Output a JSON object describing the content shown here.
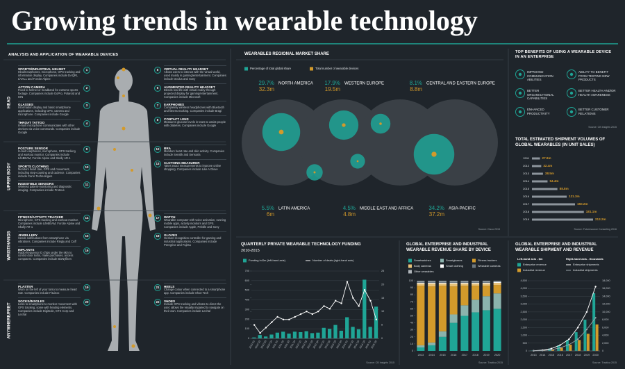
{
  "title": "Growing trends in wearable technology",
  "devices": {
    "heading": "ANALYSIS AND APPLICATION OF WEARABLE DEVICES",
    "regions": [
      {
        "label": "HEAD",
        "left": [
          {
            "number": 1,
            "name": "SPORTS/INDUSTRIAL HELMET",
            "text": "Inbuilt earphones, microphone, GPS tracking and information display. Companies include DAQRI, LiVALL and Forcite Alpine"
          },
          {
            "number": 2,
            "name": "ACTION CAMERA",
            "text": "Fixed to helmet or headband for extreme sports footage. Companies include GoPro, Polaroid and ION"
          },
          {
            "number": 3,
            "name": "GLASSES",
            "text": "Information display and basic smartphone applications, including GPS, camera and microphone. Companies include Google"
          },
          {
            "number": 4,
            "name": "THROAT TATTOO",
            "text": "In-built microphone communicates with other devices via voice commands. Companies include Google"
          }
        ],
        "right": [
          {
            "number": 5,
            "name": "VIRTUAL REALITY HEADSET",
            "text": "Allows users to interact with the virtual world, used mainly in gaming/entertainment. Companies include Oculus and Sony"
          },
          {
            "number": 6,
            "name": "AUGMENTED REALITY HEADSET",
            "text": "Blends real life with virtual reality through projected display for gaming/entertainment. Companies include Microsoft"
          },
          {
            "number": 7,
            "name": "EARPHONES",
            "text": "Completely wireless headphones with Bluetooth and fitness tracking. Companies include Bragi"
          },
          {
            "number": 8,
            "name": "CONTACT LENS",
            "text": "Measures glucose levels in tears to assist people with diabetes. Companies include Google"
          }
        ]
      },
      {
        "label": "UPPER BODY",
        "left": [
          {
            "number": 9,
            "name": "POSTURE SENSOR",
            "text": "In-built earphones, microphone, GPS tracking and workout monitor. Companies include LifeBEAM, Forcite Alpine and Skully AR-1"
          },
          {
            "number": 10,
            "name": "SPORTS CLOTHING",
            "text": "Monitors heart rate, GPS and movement, including step-counting and cadence. Companies include Carre Technologies"
          },
          {
            "number": 11,
            "name": "INGESTIBLE SENSORS",
            "text": "Wireless patient-monitoring and diagnostic imaging. Companies include Proteus"
          }
        ],
        "right": [
          {
            "number": 12,
            "name": "BRA",
            "text": "Monitors heart rate and skin activity. Companies include Sensilk and Sensoria"
          },
          {
            "number": 13,
            "name": "CLOTHING MEASURER",
            "text": "Takes exact measurements to improve online shopping. Companies include Like A Glove"
          }
        ]
      },
      {
        "label": "WRIST/HANDS",
        "left": [
          {
            "number": 14,
            "name": "FITNESS/ACTIVITY TRACKER",
            "text": "Microphone, GPS tracking and workout monitor. Companies include LifeBEAM, Forcite Alpine and Skully AR-1"
          },
          {
            "number": 15,
            "name": "JEWELLERY",
            "text": "Sends notifications from smartphone via vibrations. Companies include Ringly and Cuff"
          },
          {
            "number": 16,
            "name": "IMPLANTS",
            "text": "Radio-frequency ID chips under the skin to control door locks, make purchases, access computers. Companies include BioNyfiken"
          }
        ],
        "right": [
          {
            "number": 17,
            "name": "WATCH",
            "text": "Wearable computer with voice activation, running mobile apps, activity monitors and GPS. Companies include Apple, Pebble and Sony"
          },
          {
            "number": 18,
            "name": "GLOVES",
            "text": "Gesture-recognition controller for gaming and industrial applications. Companies include Peregrine and Fujitsu"
          }
        ]
      },
      {
        "label": "ANYWHERE/FEET",
        "left": [
          {
            "number": 19,
            "name": "PLASTER",
            "text": "Worn on the left of your torso to measure heart rate. Companies include FitLinxx"
          },
          {
            "number": 20,
            "name": "SOCKS/INSOLES",
            "text": "Links to smartphone to monitor movement with GPS tracking, some with heating elements. Companies include Digitsole, GTX Corp and Lechal"
          }
        ],
        "right": [
          {
            "number": 21,
            "name": "HEELS",
            "text": "Change colour when connected to a smartphone app. Companies include Shoe Tech"
          },
          {
            "number": 22,
            "name": "SHOES",
            "text": "Include GPS tracking and vibrate to direct the user; allows the visually impaired to navigate on their own. Companies include Lechal"
          }
        ]
      }
    ]
  },
  "benefits": {
    "heading": "TOP BENEFITS OF USING A WEARABLE DEVICE IN AN ENTERPRISE",
    "items": [
      "IMPROVED COMMUNICATION ABILITIES",
      "ABILITY TO BENEFIT FROM TESTING NEW PRODUCTS",
      "BETTER ORGANISATIONAL CAPABILITIES",
      "BETTER HEALTH AND/OR HEALTH AWARENESS",
      "ENHANCED PRODUCTIVITY",
      "BETTER CUSTOMER RELATIONS"
    ],
    "source": "Source: CB Insights 2015"
  },
  "chart_data": [
    {
      "type": "bubble-map",
      "title": "WEARABLES REGIONAL MARKET SHARE",
      "source": "Source: Cisco 2015",
      "categories": [
        "NORTH AMERICA",
        "WESTERN EUROPE",
        "CENTRAL AND EASTERN EUROPE",
        "LATIN AMERICA",
        "MIDDLE EAST AND AFRICA",
        "ASIA-PACIFIC"
      ],
      "series": [
        {
          "name": "Percentage of total global share",
          "color": "#1fa596",
          "values": [
            29.7,
            17.9,
            8.1,
            5.5,
            4.5,
            34.2
          ],
          "value_labels": [
            "29.7%",
            "17.9%",
            "8.1%",
            "5.5%",
            "4.5%",
            "34.2%"
          ]
        },
        {
          "name": "Total number of wearable devices",
          "color": "#d39a2b",
          "values": [
            32.3,
            19.5,
            8.8,
            6,
            4.8,
            37.2
          ],
          "value_labels": [
            "32.3m",
            "19.5m",
            "8.8m",
            "6m",
            "4.8m",
            "37.2m"
          ]
        }
      ]
    },
    {
      "type": "hbar",
      "title": "TOTAL ESTIMATED SHIPMENT VOLUMES OF GLOBAL WEARABLES (IN UNIT SALES)",
      "source": "Source: Futuresource Consulting 2016",
      "categories": [
        "2011",
        "2012",
        "2013",
        "2014",
        "2015",
        "2016",
        "2017",
        "2018",
        "2019"
      ],
      "values": [
        27.9,
        32.4,
        38.5,
        54.4,
        88.8,
        121.3,
        150.2,
        181.1,
        213.2
      ],
      "value_labels": [
        "27.9m",
        "32.4m",
        "38.5m",
        "54.4m",
        "88.8m",
        "121.3m",
        "150.2m",
        "181.1m",
        "213.2m"
      ],
      "color": "#8d959c",
      "label_color": "#d39a2b"
    },
    {
      "type": "bar-line",
      "title": "QUARTERLY PRIVATE WEARABLE TECHNOLOGY FUNDING",
      "subtitle": "2010-2015",
      "source": "Source: CB Insights 2015",
      "categories": [
        "2010 Q1",
        "2010 Q2",
        "2010 Q3",
        "2010 Q4",
        "2011 Q1",
        "2011 Q2",
        "2011 Q3",
        "2011 Q4",
        "2012 Q1",
        "2012 Q2",
        "2012 Q3",
        "2012 Q4",
        "2013 Q1",
        "2013 Q2",
        "2013 Q3",
        "2013 Q4",
        "2014 Q1",
        "2014 Q2",
        "2014 Q3",
        "2014 Q4",
        "2015 Q1",
        "2015 Q2"
      ],
      "series": [
        {
          "name": "Funding in $m (left-hand axis)",
          "color": "#1fa596",
          "values": [
            10,
            35,
            20,
            40,
            60,
            70,
            50,
            70,
            65,
            75,
            55,
            60,
            110,
            100,
            140,
            80,
            220,
            120,
            95,
            610,
            120,
            330
          ]
        },
        {
          "name": "Number of deals (right-hand axis)",
          "color": "#ffffff",
          "axis": "y2",
          "values": [
            5,
            2,
            4,
            6,
            8,
            7,
            7,
            8,
            9,
            10,
            9,
            10,
            12,
            11,
            14,
            13,
            21,
            15,
            12,
            18,
            14,
            7
          ]
        }
      ],
      "ylim": [
        0,
        700
      ],
      "yticks": [
        0,
        100,
        200,
        300,
        400,
        500,
        600,
        700
      ],
      "y2lim": [
        0,
        25
      ],
      "y2ticks": [
        0,
        5,
        10,
        15,
        20,
        25
      ],
      "grid": true
    },
    {
      "type": "stacked-bar",
      "title": "GLOBAL ENTERPRISE AND INDUSTRIAL WEARABLE REVENUE SHARE BY DEVICE",
      "source": "Source: Tractica 2015",
      "categories": [
        "2013",
        "2014",
        "2015",
        "2016",
        "2017",
        "2018",
        "2019",
        "2020"
      ],
      "series": [
        {
          "name": "Smartwatches",
          "color": "#1fa596",
          "values": [
            5,
            8,
            20,
            40,
            50,
            55,
            58,
            60
          ]
        },
        {
          "name": "Smartglasses",
          "color": "#8bb3ad",
          "values": [
            3,
            4,
            8,
            12,
            15,
            18,
            20,
            22
          ]
        },
        {
          "name": "Fitness trackers",
          "color": "#d39a2b",
          "values": [
            85,
            80,
            65,
            40,
            28,
            20,
            15,
            12
          ]
        },
        {
          "name": "Body cameras",
          "color": "#e8c27a",
          "values": [
            3,
            4,
            3,
            4,
            3,
            3,
            3,
            3
          ]
        },
        {
          "name": "Smart clothing",
          "color": "#ffffff",
          "values": [
            1,
            1,
            1,
            1,
            1,
            1,
            1,
            1
          ]
        },
        {
          "name": "Wearable cameras",
          "color": "#6d7880",
          "values": [
            2,
            2,
            2,
            2,
            2,
            2,
            2,
            1
          ]
        },
        {
          "name": "Other wearables",
          "color": "#b0b6bb",
          "values": [
            1,
            1,
            1,
            1,
            1,
            1,
            1,
            1
          ]
        }
      ],
      "ylim": [
        0,
        100
      ],
      "yticks": [
        0,
        10,
        20,
        30,
        40,
        50,
        60,
        70,
        80,
        90,
        100
      ],
      "grid": false
    },
    {
      "type": "bar-line",
      "title": "GLOBAL ENTERPRISE AND INDUSTRIAL WEARABLE SHIPMENT AND REVENUE",
      "source": "Source: Tractica 2015",
      "ylabel": "Left-hand axis - $m",
      "y2label": "Right-hand axis - thousands",
      "categories": [
        "2013",
        "2014",
        "2015",
        "2016",
        "2017",
        "2018",
        "2019",
        "2020"
      ],
      "series": [
        {
          "name": "Enterprise revenue",
          "color": "#1fa596",
          "values": [
            20,
            60,
            150,
            350,
            700,
            1200,
            2000,
            3700
          ]
        },
        {
          "name": "Industrial revenue",
          "color": "#d39a2b",
          "values": [
            10,
            30,
            80,
            200,
            400,
            700,
            1100,
            1700
          ]
        },
        {
          "name": "Enterprise shipments",
          "color": "#ffffff",
          "axis": "y2",
          "values": [
            50,
            200,
            600,
            1500,
            3000,
            6000,
            10000,
            16500
          ]
        },
        {
          "name": "Industrial shipments",
          "color": "#9aa3a9",
          "axis": "y2",
          "values": [
            30,
            100,
            300,
            800,
            1600,
            3000,
            5500,
            8500
          ]
        }
      ],
      "ylim": [
        0,
        4500
      ],
      "yticks": [
        0,
        500,
        {
          "value": 1000,
          "label": "1,000"
        },
        {
          "value": 1500,
          "label": "1,500"
        },
        {
          "value": 2000,
          "label": "2,000"
        },
        {
          "value": 2500,
          "label": "2,500"
        },
        {
          "value": 3000,
          "label": "3,000"
        },
        {
          "value": 3500,
          "label": "3,500"
        },
        {
          "value": 4000,
          "label": "4,000"
        },
        {
          "value": 4500,
          "label": "4,500"
        }
      ],
      "y2lim": [
        0,
        18000
      ],
      "y2ticks": [
        0,
        {
          "value": 2000,
          "label": "2,000"
        },
        {
          "value": 4000,
          "label": "4,000"
        },
        {
          "value": 6000,
          "label": "6,000"
        },
        {
          "value": 8000,
          "label": "8,000"
        },
        {
          "value": 10000,
          "label": "10,000"
        },
        {
          "value": 12000,
          "label": "12,000"
        },
        {
          "value": 14000,
          "label": "14,000"
        },
        {
          "value": 16000,
          "label": "16,000"
        },
        {
          "value": 18000,
          "label": "18,000"
        }
      ],
      "grid": true
    }
  ]
}
